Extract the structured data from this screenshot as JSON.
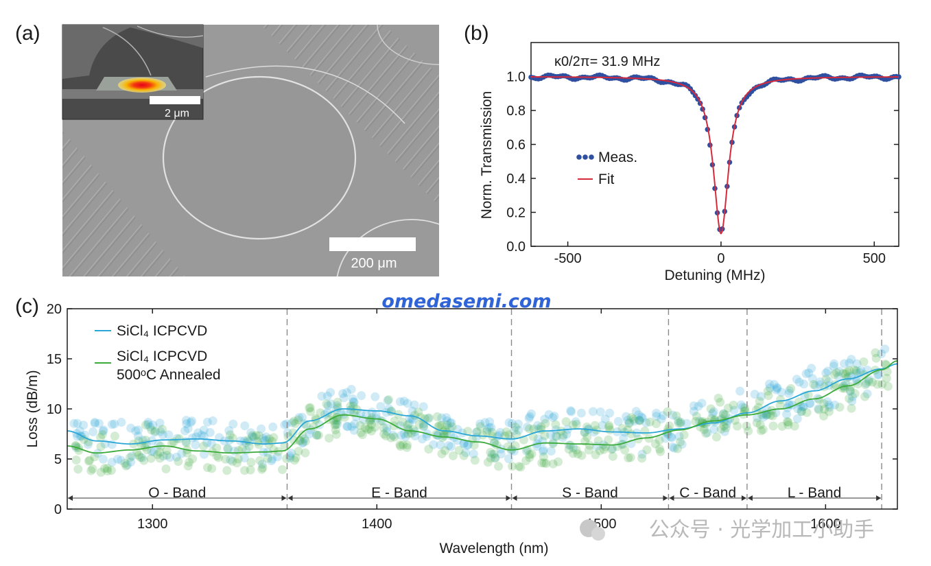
{
  "panels": {
    "a": "(a)",
    "b": "(b)",
    "c": "(c)"
  },
  "panel_a": {
    "inset_scalebar": "2 μm",
    "main_scalebar": "200 μm"
  },
  "watermarks": {
    "site": "omedasemi.com",
    "wechat": "公众号 · 光学加工小助手"
  },
  "colors": {
    "meas": "#2f4fa0",
    "fit": "#d62a3c",
    "icpcvd": "#29a6d6",
    "annealed": "#3aaa3a",
    "sem_bg": "#9a9a9a"
  },
  "chart_data": [
    {
      "id": "b",
      "type": "line",
      "annotation": "κ0/2π= 31.9 MHz",
      "xlabel": "Detuning (MHz)",
      "ylabel": "Norm. Transmission",
      "xlim": [
        -620,
        580
      ],
      "ylim": [
        0,
        1.2
      ],
      "xticks": [
        -500,
        0,
        500
      ],
      "xtick_labels": [
        "-500",
        "0",
        "500"
      ],
      "yticks": [
        0,
        0.2,
        0.4,
        0.6,
        0.8,
        1.0
      ],
      "ytick_labels": [
        "0.0",
        "0.2",
        "0.4",
        "0.6",
        "0.8",
        "1.0"
      ],
      "legend": [
        {
          "name": "Meas.",
          "style": "dots"
        },
        {
          "name": "Fit",
          "style": "line"
        }
      ],
      "series": [
        {
          "name": "Meas.",
          "model": "lorentzian",
          "center": 0,
          "fwhm": 62,
          "depth": 0.92,
          "x_range": [
            -620,
            580
          ],
          "step": 8
        },
        {
          "name": "Fit",
          "model": "lorentzian",
          "center": 0,
          "fwhm": 60,
          "depth": 0.925,
          "x_range": [
            -620,
            580
          ]
        }
      ]
    },
    {
      "id": "c",
      "type": "line",
      "xlabel": "Wavelength (nm)",
      "ylabel": "Loss (dB/m)",
      "xlim": [
        1262,
        1632
      ],
      "ylim": [
        0,
        20
      ],
      "xticks": [
        1300,
        1400,
        1500,
        1600
      ],
      "xtick_labels": [
        "1300",
        "1400",
        "1500",
        "1600"
      ],
      "yticks": [
        0,
        5,
        10,
        15,
        20
      ],
      "ytick_labels": [
        "0",
        "5",
        "10",
        "15",
        "20"
      ],
      "band_boundaries": [
        1260,
        1360,
        1460,
        1530,
        1565,
        1625
      ],
      "bands": [
        {
          "name": "O - Band",
          "start": 1260,
          "end": 1360
        },
        {
          "name": "E - Band",
          "start": 1360,
          "end": 1460
        },
        {
          "name": "S - Band",
          "start": 1460,
          "end": 1530
        },
        {
          "name": "C - Band",
          "start": 1530,
          "end": 1565
        },
        {
          "name": "L - Band",
          "start": 1565,
          "end": 1625
        }
      ],
      "legend": [
        "SiCl₄ ICPCVD",
        "SiCl₄ ICPCVD",
        "500ᵒC Annealed"
      ],
      "series": [
        {
          "name": "SiCl₄ ICPCVD",
          "x": [
            1262,
            1275,
            1290,
            1305,
            1320,
            1335,
            1350,
            1358,
            1370,
            1385,
            1400,
            1415,
            1430,
            1445,
            1460,
            1475,
            1490,
            1505,
            1520,
            1535,
            1550,
            1565,
            1580,
            1595,
            1610,
            1625,
            1632
          ],
          "y": [
            7.8,
            6.8,
            6.5,
            6.9,
            7.0,
            6.8,
            6.5,
            6.6,
            8.8,
            10.0,
            9.8,
            9.3,
            7.8,
            7.3,
            7.0,
            7.8,
            8.0,
            7.7,
            7.6,
            8.0,
            8.6,
            9.6,
            10.8,
            11.8,
            13.0,
            14.0,
            14.5
          ]
        },
        {
          "name": "500ᵒC Annealed",
          "x": [
            1262,
            1275,
            1290,
            1305,
            1320,
            1335,
            1350,
            1358,
            1370,
            1385,
            1400,
            1415,
            1430,
            1445,
            1460,
            1475,
            1490,
            1505,
            1520,
            1535,
            1550,
            1565,
            1580,
            1595,
            1610,
            1625,
            1632
          ],
          "y": [
            6.3,
            5.6,
            5.9,
            6.3,
            5.8,
            5.6,
            5.7,
            5.8,
            8.0,
            9.4,
            9.0,
            7.8,
            7.2,
            6.7,
            5.9,
            6.6,
            6.5,
            6.4,
            7.1,
            7.9,
            8.8,
            9.4,
            10.0,
            11.0,
            12.3,
            13.9,
            14.8
          ]
        }
      ]
    }
  ]
}
